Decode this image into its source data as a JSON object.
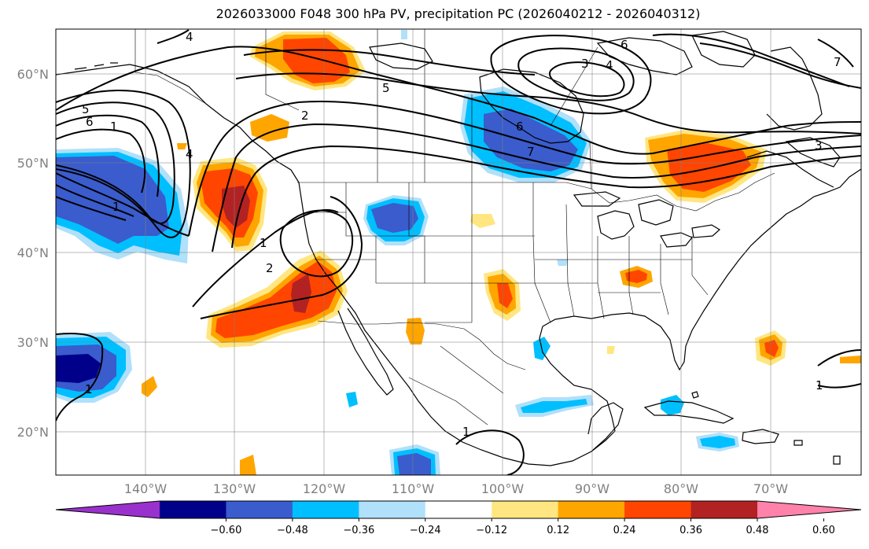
{
  "title": "2026033000 F048 300 hPa PV, precipitation PC (2026040212 - 2026040312)",
  "map": {
    "projection": "PlateCarree",
    "lon_range": [
      -150,
      -60
    ],
    "lat_range": [
      15,
      65
    ],
    "gridlines": true,
    "lat_ticks": [
      "60°N",
      "50°N",
      "40°N",
      "30°N",
      "20°N"
    ],
    "lon_ticks": [
      "140°W",
      "130°W",
      "120°W",
      "110°W",
      "100°W",
      "90°W",
      "80°W",
      "70°W"
    ]
  },
  "colorbar": {
    "orientation": "horizontal",
    "extend": "both",
    "labels": [
      "−0.60",
      "−0.48",
      "−0.36",
      "−0.24",
      "−0.12",
      "0.12",
      "0.24",
      "0.36",
      "0.48",
      "0.60"
    ],
    "colors": [
      "#9932cc",
      "#00008b",
      "#3a5ccc",
      "#00bfff",
      "#b0e0fa",
      "#ffffff",
      "#ffe680",
      "#ffa500",
      "#ff4500",
      "#b22222",
      "#ff82ab"
    ]
  },
  "contour_labels": [
    "4",
    "5",
    "6",
    "1",
    "4",
    "2",
    "5",
    "3",
    "4",
    "6",
    "7",
    "6",
    "7",
    "3",
    "1",
    "1",
    "2",
    "1",
    "1",
    "1"
  ]
}
